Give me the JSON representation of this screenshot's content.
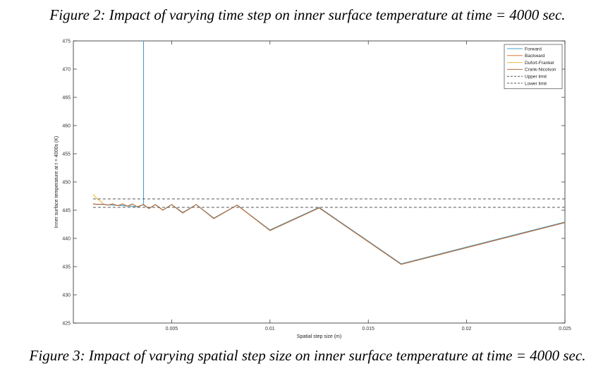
{
  "captions": {
    "top": "Figure 2: Impact of varying time step on inner surface temperature at time = 4000 sec.",
    "bottom": "Figure 3: Impact of varying spatial step size on inner surface temperature at time = 4000 sec."
  },
  "chart_data": {
    "type": "line",
    "xlabel": "Spatial step size (m)",
    "ylabel": "Inner surface temperature at t = 4000s (K)",
    "xlim": [
      0,
      0.025
    ],
    "ylim": [
      425,
      475
    ],
    "xticks": [
      0.005,
      0.01,
      0.015,
      0.02,
      0.025
    ],
    "xtick_labels": [
      "0.005",
      "0.01",
      "0.015",
      "0.02",
      "0.025"
    ],
    "yticks": [
      425,
      430,
      435,
      440,
      445,
      450,
      455,
      460,
      465,
      470,
      475
    ],
    "grid": false,
    "legend_position": "top-right",
    "series": [
      {
        "name": "Forward",
        "color": "#4a9cc8",
        "x": [
          0.001,
          0.0015,
          0.002,
          0.0025,
          0.003,
          0.0033,
          0.00357,
          0.00357,
          0.00357,
          0.00385,
          0.00417,
          0.00455,
          0.005,
          0.00556,
          0.00625,
          0.00714,
          0.00833,
          0.01,
          0.0125,
          0.01667,
          0.025
        ],
        "y": [
          446.1,
          446.0,
          445.9,
          445.8,
          445.7,
          445.6,
          446.0,
          475,
          445.9,
          445.3,
          446.0,
          445.0,
          446.0,
          444.6,
          446.0,
          443.6,
          445.9,
          441.5,
          445.5,
          435.5,
          442.9
        ]
      },
      {
        "name": "Backward",
        "color": "#e07a3a",
        "x": [
          0.001,
          0.00125,
          0.0015,
          0.00175,
          0.002,
          0.00225,
          0.0025,
          0.00275,
          0.003,
          0.00325,
          0.00357,
          0.00385,
          0.00417,
          0.00455,
          0.005,
          0.00556,
          0.00625,
          0.00714,
          0.00833,
          0.01,
          0.0125,
          0.01667,
          0.025
        ],
        "y": [
          446.1,
          446.0,
          446.1,
          445.9,
          446.1,
          445.8,
          446.1,
          445.7,
          446.1,
          445.6,
          446.0,
          445.3,
          446.0,
          445.0,
          446.0,
          444.5,
          446.0,
          443.5,
          445.9,
          441.4,
          445.4,
          435.4,
          442.8
        ]
      },
      {
        "name": "Dufort-Frankel",
        "color": "#e8b83a",
        "x": [
          0.001,
          0.00125,
          0.0015
        ],
        "y": [
          447.8,
          446.9,
          446.3
        ]
      },
      {
        "name": "Crank-Nicolson",
        "color": "#b07040",
        "x": [
          0.001,
          0.00125,
          0.0015,
          0.00175,
          0.002,
          0.00225,
          0.0025,
          0.00275,
          0.003,
          0.00325,
          0.00357,
          0.00385,
          0.00417,
          0.00455,
          0.005,
          0.00556,
          0.00625,
          0.00714,
          0.00833,
          0.01,
          0.0125,
          0.01667,
          0.025
        ],
        "y": [
          446.1,
          446.0,
          446.1,
          445.9,
          446.1,
          445.8,
          446.1,
          445.7,
          446.1,
          445.6,
          446.0,
          445.3,
          446.0,
          445.0,
          446.0,
          444.5,
          446.0,
          443.5,
          445.9,
          441.4,
          445.4,
          435.4,
          442.8
        ]
      },
      {
        "name": "Upper limit",
        "color": "#555555",
        "dashed": true,
        "x": [
          0.001,
          0.025
        ],
        "y": [
          447.0,
          447.0
        ]
      },
      {
        "name": "Lower limit",
        "color": "#555555",
        "dashed": true,
        "x": [
          0.001,
          0.025
        ],
        "y": [
          445.5,
          445.5
        ]
      }
    ]
  }
}
